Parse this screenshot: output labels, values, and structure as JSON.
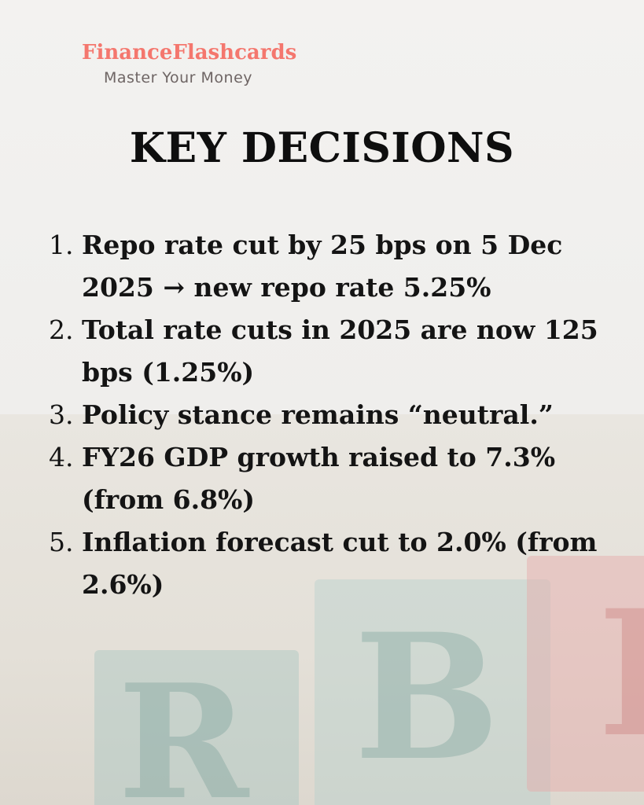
{
  "brand": {
    "name": "FinanceFlashcards",
    "tagline": "Master Your Money",
    "color": "#f4776e"
  },
  "title": "KEY DECISIONS",
  "items": [
    {
      "num": "1.",
      "text": "Repo rate cut by 25 bps on 5 Dec 2025 → new repo rate 5.25%"
    },
    {
      "num": "2.",
      "text": "Total rate cuts in 2025 are now 125 bps (1.25%)"
    },
    {
      "num": "3.",
      "text": "Policy stance remains “neutral.”"
    },
    {
      "num": "4.",
      "text": "FY26 GDP growth raised to 7.3% (from 6.8%)"
    },
    {
      "num": "5.",
      "text": "Inflation forecast cut to 2.0% (from 2.6%)"
    }
  ],
  "background_blocks": [
    "R",
    "B",
    "I"
  ]
}
